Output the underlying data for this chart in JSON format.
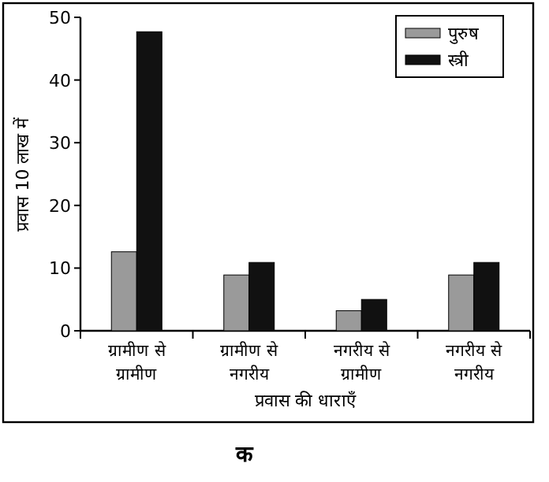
{
  "chart_data": {
    "type": "bar",
    "xlabel": "प्रवास की धाराएँ",
    "ylabel": "प्रवास 10 लाख में",
    "categories": [
      "ग्रामीण से ग्रामीण",
      "ग्रामीण से नगरीय",
      "नगरीय से ग्रामीण",
      "नगरीय से नगरीय"
    ],
    "series": [
      {
        "name": "पुरुष",
        "color": "#9a9a9a",
        "values": [
          12.6,
          8.9,
          3.2,
          8.9
        ]
      },
      {
        "name": "स्त्री",
        "color": "#111111",
        "values": [
          47.7,
          10.9,
          5.0,
          10.9
        ]
      }
    ],
    "ylim": [
      0,
      50
    ],
    "yticks": [
      0,
      10,
      20,
      30,
      40,
      50
    ],
    "legend": "top right",
    "grid": false,
    "annotations": [
      "क"
    ]
  }
}
